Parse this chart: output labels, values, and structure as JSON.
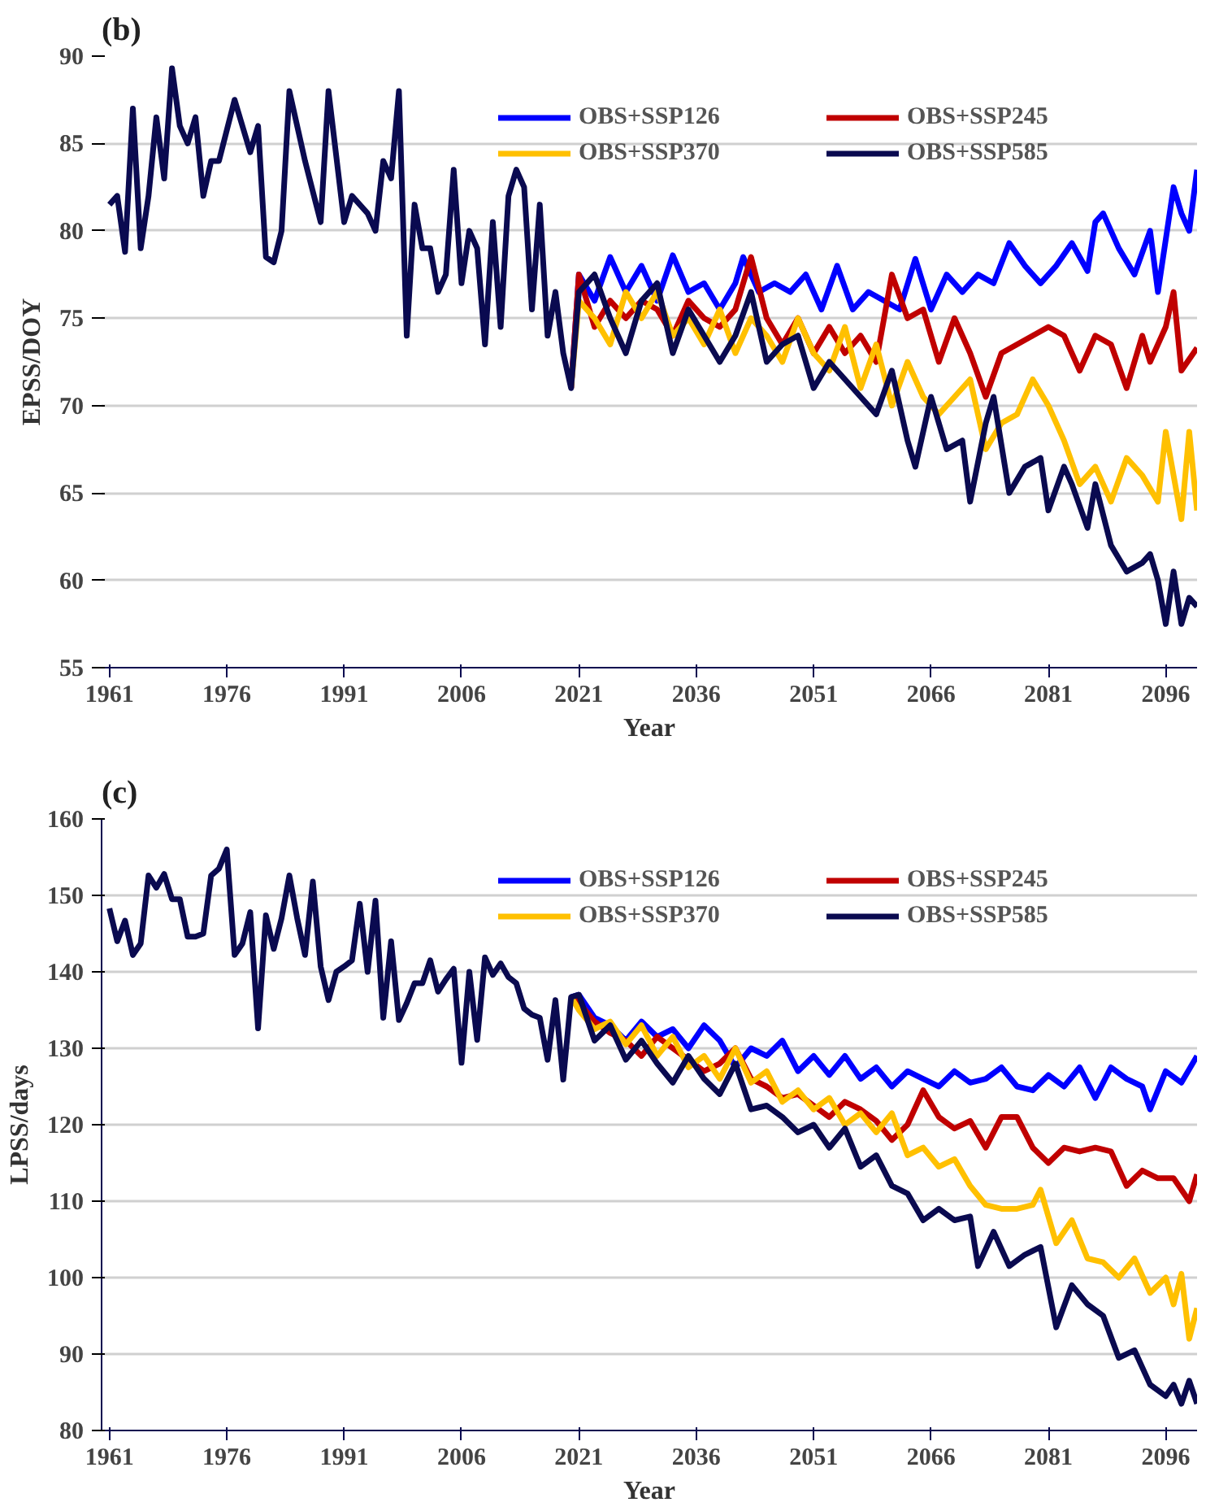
{
  "chart_data": [
    {
      "type": "line",
      "title": "(b)",
      "xlabel": "Year",
      "ylabel": "EPSS/DOY",
      "xlim": [
        1960,
        2100
      ],
      "xticks": [
        1961,
        1976,
        1991,
        2006,
        2021,
        2036,
        2051,
        2066,
        2081,
        2096
      ],
      "ylim": [
        55,
        90
      ],
      "yticks": [
        55,
        60,
        65,
        70,
        75,
        80,
        85,
        90
      ],
      "grid": "y",
      "legend": "top right",
      "line_style": "solid",
      "series": [
        {
          "name": "OBS+SSP126",
          "color": "#0000ff",
          "x": [
            2020,
            2021,
            2023,
            2025,
            2027,
            2029,
            2031,
            2033,
            2035,
            2037,
            2039,
            2041,
            2042,
            2044,
            2046,
            2048,
            2050,
            2052,
            2054,
            2056,
            2058,
            2060,
            2062,
            2064,
            2066,
            2068,
            2070,
            2072,
            2074,
            2076,
            2078,
            2080,
            2082,
            2084,
            2086,
            2087,
            2088,
            2090,
            2092,
            2094,
            2095,
            2097,
            2098,
            2099,
            2100
          ],
          "values": [
            71,
            77.5,
            76,
            78.5,
            76.5,
            78,
            76,
            78.6,
            76.5,
            77,
            75.5,
            77,
            78.5,
            76.5,
            77,
            76.5,
            77.5,
            75.5,
            78,
            75.5,
            76.5,
            76,
            75.5,
            78.4,
            75.5,
            77.5,
            76.5,
            77.5,
            77,
            79.3,
            78,
            77,
            78,
            79.3,
            77.7,
            80.5,
            81,
            79,
            77.5,
            80,
            76.5,
            82.5,
            81,
            80,
            83.5
          ]
        },
        {
          "name": "OBS+SSP245",
          "color": "#c00000",
          "x": [
            2020,
            2021,
            2023,
            2025,
            2027,
            2029,
            2031,
            2033,
            2035,
            2037,
            2039,
            2041,
            2043,
            2045,
            2047,
            2049,
            2051,
            2053,
            2055,
            2057,
            2059,
            2061,
            2063,
            2065,
            2067,
            2069,
            2071,
            2073,
            2075,
            2077,
            2079,
            2081,
            2083,
            2085,
            2087,
            2089,
            2091,
            2093,
            2094,
            2096,
            2097,
            2098,
            2100
          ],
          "values": [
            71,
            77.5,
            74.5,
            76,
            75,
            76,
            75.5,
            74,
            76,
            75,
            74.5,
            75.5,
            78.5,
            75,
            73.5,
            75,
            73,
            74.5,
            73,
            74,
            72.5,
            77.5,
            75,
            75.5,
            72.5,
            75,
            73,
            70.5,
            73,
            73.5,
            74,
            74.5,
            74,
            72,
            74,
            73.5,
            71,
            74,
            72.5,
            74.5,
            76.5,
            72,
            73.3
          ]
        },
        {
          "name": "OBS+SSP370",
          "color": "#ffc000",
          "x": [
            2020,
            2021,
            2023,
            2025,
            2027,
            2029,
            2031,
            2033,
            2035,
            2037,
            2039,
            2041,
            2043,
            2045,
            2047,
            2049,
            2051,
            2053,
            2055,
            2057,
            2059,
            2061,
            2063,
            2065,
            2067,
            2069,
            2071,
            2073,
            2075,
            2077,
            2079,
            2081,
            2083,
            2085,
            2087,
            2089,
            2091,
            2093,
            2095,
            2096,
            2098,
            2099,
            2100
          ],
          "values": [
            71,
            76,
            75,
            73.5,
            76.5,
            75,
            76.5,
            74,
            75,
            73.5,
            75.5,
            73,
            75,
            74,
            72.5,
            75,
            73,
            72,
            74.5,
            71,
            73.5,
            70,
            72.5,
            70.5,
            69.5,
            70.5,
            71.5,
            67.5,
            69,
            69.5,
            71.5,
            70,
            68,
            65.5,
            66.5,
            64.5,
            67,
            66,
            64.5,
            68.5,
            63.5,
            68.5,
            64
          ]
        },
        {
          "name": "OBS+SSP585",
          "color": "#0a0a50",
          "x": [
            1961,
            1962,
            1963,
            1964,
            1965,
            1966,
            1967,
            1968,
            1969,
            1970,
            1971,
            1972,
            1973,
            1974,
            1975,
            1977,
            1979,
            1980,
            1981,
            1982,
            1983,
            1984,
            1986,
            1988,
            1989,
            1991,
            1992,
            1994,
            1995,
            1996,
            1997,
            1998,
            1999,
            2000,
            2001,
            2002,
            2003,
            2004,
            2005,
            2006,
            2007,
            2008,
            2009,
            2010,
            2011,
            2012,
            2013,
            2014,
            2015,
            2016,
            2017,
            2018,
            2019,
            2020,
            2021,
            2023,
            2025,
            2027,
            2029,
            2031,
            2033,
            2035,
            2037,
            2039,
            2041,
            2043,
            2045,
            2047,
            2049,
            2051,
            2053,
            2055,
            2057,
            2059,
            2061,
            2063,
            2064,
            2066,
            2068,
            2070,
            2071,
            2073,
            2074,
            2076,
            2078,
            2080,
            2081,
            2083,
            2084,
            2086,
            2087,
            2089,
            2091,
            2093,
            2094,
            2095,
            2096,
            2097,
            2098,
            2099,
            2100
          ],
          "values": [
            81.5,
            82,
            78.8,
            87,
            79,
            82,
            86.5,
            83,
            89.3,
            86,
            85,
            86.5,
            82,
            84,
            84,
            87.5,
            84.5,
            86,
            78.5,
            78.2,
            80,
            88,
            84,
            80.5,
            88,
            80.5,
            82,
            81,
            80,
            84,
            83,
            88,
            74,
            81.5,
            79,
            79,
            76.5,
            77.5,
            83.5,
            77,
            80,
            79,
            73.5,
            80.5,
            74.5,
            82,
            83.5,
            82.5,
            75.5,
            81.5,
            74,
            76.5,
            73,
            71,
            76.5,
            77.5,
            75,
            73,
            76,
            77,
            73,
            75.5,
            74,
            72.5,
            74,
            76.5,
            72.5,
            73.5,
            74,
            71,
            72.5,
            71.5,
            70.5,
            69.5,
            72,
            68,
            66.5,
            70.5,
            67.5,
            68,
            64.5,
            69,
            70.5,
            65,
            66.5,
            67,
            64,
            66.5,
            65.5,
            63,
            65.5,
            62,
            60.5,
            61,
            61.5,
            60,
            57.5,
            60.5,
            57.5,
            59,
            58.5
          ]
        }
      ]
    },
    {
      "type": "line",
      "title": "(c)",
      "xlabel": "Year",
      "ylabel": "LPSS/days",
      "xlim": [
        1960,
        2100
      ],
      "xticks": [
        1961,
        1976,
        1991,
        2006,
        2021,
        2036,
        2051,
        2066,
        2081,
        2096
      ],
      "ylim": [
        80,
        160
      ],
      "yticks": [
        80,
        90,
        100,
        110,
        120,
        130,
        140,
        150,
        160
      ],
      "grid": "y",
      "legend": "top right",
      "line_style": "solid",
      "series": [
        {
          "name": "OBS+SSP126",
          "color": "#0000ff",
          "x": [
            2020,
            2021,
            2023,
            2025,
            2027,
            2029,
            2031,
            2033,
            2035,
            2037,
            2039,
            2041,
            2043,
            2045,
            2047,
            2049,
            2051,
            2053,
            2055,
            2057,
            2059,
            2061,
            2063,
            2065,
            2067,
            2069,
            2071,
            2073,
            2075,
            2077,
            2079,
            2081,
            2083,
            2085,
            2087,
            2089,
            2091,
            2093,
            2094,
            2096,
            2098,
            2100
          ],
          "values": [
            136.7,
            137,
            134,
            133,
            131,
            133.5,
            131.5,
            132.5,
            130,
            133,
            131,
            127.5,
            130,
            129,
            131,
            127,
            129,
            126.5,
            129,
            126,
            127.5,
            125,
            127,
            126,
            125,
            127,
            125.5,
            126,
            127.5,
            125,
            124.5,
            126.5,
            125,
            127.5,
            123.5,
            127.5,
            126,
            125,
            122,
            127,
            125.5,
            129
          ]
        },
        {
          "name": "OBS+SSP245",
          "color": "#c00000",
          "x": [
            2020,
            2021,
            2023,
            2025,
            2027,
            2029,
            2031,
            2033,
            2035,
            2037,
            2039,
            2041,
            2043,
            2045,
            2047,
            2049,
            2051,
            2053,
            2055,
            2057,
            2059,
            2061,
            2063,
            2065,
            2067,
            2069,
            2071,
            2073,
            2075,
            2077,
            2079,
            2081,
            2083,
            2085,
            2087,
            2089,
            2091,
            2093,
            2095,
            2097,
            2099,
            2100
          ],
          "values": [
            136.7,
            136,
            133.5,
            132,
            131,
            129,
            131.5,
            130,
            128.5,
            127,
            128,
            130,
            126,
            125,
            123.5,
            124,
            122.5,
            121,
            123,
            122,
            120.5,
            118,
            120,
            124.5,
            121,
            119.5,
            120.5,
            117,
            121,
            121,
            117,
            115,
            117,
            116.5,
            117,
            116.5,
            112,
            114,
            113,
            113,
            110,
            113.5
          ]
        },
        {
          "name": "OBS+SSP370",
          "color": "#ffc000",
          "x": [
            2020,
            2021,
            2023,
            2025,
            2027,
            2029,
            2031,
            2033,
            2035,
            2037,
            2039,
            2041,
            2043,
            2045,
            2047,
            2049,
            2051,
            2053,
            2055,
            2057,
            2059,
            2061,
            2063,
            2065,
            2067,
            2069,
            2071,
            2073,
            2075,
            2077,
            2079,
            2080,
            2082,
            2084,
            2086,
            2088,
            2090,
            2092,
            2094,
            2096,
            2097,
            2098,
            2099,
            2100
          ],
          "values": [
            136.7,
            135,
            132.5,
            133.5,
            130.5,
            133,
            129,
            131.5,
            127.5,
            129,
            126,
            130,
            125.5,
            127,
            123,
            124.5,
            122,
            123.5,
            120,
            121.5,
            119,
            121.5,
            116,
            117,
            114.5,
            115.5,
            112,
            109.5,
            109,
            109,
            109.5,
            111.5,
            104.5,
            107.5,
            102.5,
            102,
            100,
            102.5,
            98,
            100,
            96.5,
            100.5,
            92,
            96
          ]
        },
        {
          "name": "OBS+SSP585",
          "color": "#0a0a50",
          "x": [
            1961,
            1962,
            1963,
            1964,
            1965,
            1966,
            1967,
            1968,
            1969,
            1970,
            1971,
            1972,
            1973,
            1974,
            1975,
            1976,
            1977,
            1978,
            1979,
            1980,
            1981,
            1982,
            1983,
            1984,
            1985,
            1986,
            1987,
            1988,
            1989,
            1990,
            1991,
            1992,
            1993,
            1994,
            1995,
            1996,
            1997,
            1998,
            1999,
            2000,
            2001,
            2002,
            2003,
            2004,
            2005,
            2006,
            2007,
            2008,
            2009,
            2010,
            2011,
            2012,
            2013,
            2014,
            2015,
            2016,
            2017,
            2018,
            2019,
            2020,
            2021,
            2023,
            2025,
            2027,
            2029,
            2031,
            2033,
            2035,
            2037,
            2039,
            2041,
            2043,
            2045,
            2047,
            2049,
            2051,
            2053,
            2055,
            2057,
            2059,
            2061,
            2063,
            2065,
            2067,
            2069,
            2071,
            2072,
            2074,
            2076,
            2078,
            2080,
            2082,
            2084,
            2086,
            2088,
            2090,
            2092,
            2094,
            2096,
            2097,
            2098,
            2099,
            2100
          ],
          "values": [
            148.3,
            144,
            146.7,
            142.2,
            143.7,
            152.6,
            151,
            152.8,
            149.5,
            149.5,
            144.6,
            144.6,
            145,
            152.6,
            153.5,
            156,
            142.2,
            143.7,
            147.8,
            132.6,
            147.4,
            143,
            147,
            152.6,
            147,
            142.2,
            151.8,
            140.7,
            136.3,
            140,
            140.7,
            141.5,
            148.9,
            140,
            149.3,
            134,
            144,
            133.7,
            135.9,
            138.5,
            138.5,
            141.5,
            137.4,
            139,
            140.4,
            128.1,
            140,
            131.1,
            141.9,
            139.6,
            141.1,
            139.3,
            138.5,
            135.2,
            134.4,
            134,
            128.5,
            136.3,
            125.9,
            136.7,
            137,
            131,
            133,
            128.5,
            131,
            128,
            125.5,
            129,
            126,
            124,
            128,
            122,
            122.5,
            121,
            119,
            120,
            117,
            119.5,
            114.5,
            116,
            112,
            111,
            107.5,
            109,
            107.5,
            108,
            101.5,
            106,
            101.5,
            103,
            104,
            93.5,
            99,
            96.5,
            95,
            89.5,
            90.5,
            86,
            84.5,
            86,
            83.5,
            86.5,
            83.5
          ]
        }
      ]
    }
  ]
}
